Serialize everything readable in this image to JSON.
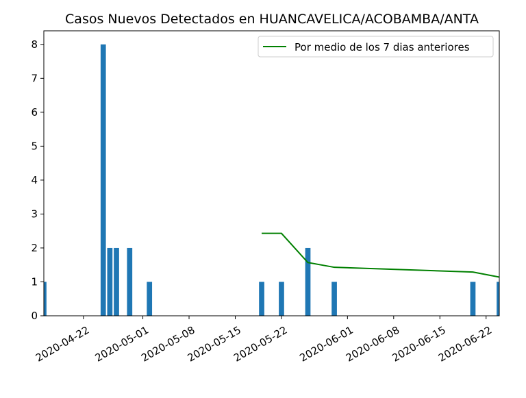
{
  "chart_data": {
    "type": "bar",
    "title": "Casos Nuevos Detectados en HUANCAVELICA/ACOBAMBA/ANTA",
    "xlabel": "",
    "ylabel": "",
    "xlim": [
      "2020-04-16",
      "2020-06-24"
    ],
    "ylim": [
      0,
      8.4
    ],
    "x_ticks": [
      "2020-04-22",
      "2020-05-01",
      "2020-05-08",
      "2020-05-15",
      "2020-05-22",
      "2020-06-01",
      "2020-06-08",
      "2020-06-15",
      "2020-06-22"
    ],
    "y_ticks": [
      0,
      1,
      2,
      3,
      4,
      5,
      6,
      7,
      8
    ],
    "grid": false,
    "legend_position": "top-right",
    "colors": {
      "bars": "#1f77b4",
      "line": "#008000"
    },
    "bars": {
      "dates": [
        "2020-04-16",
        "2020-04-25",
        "2020-04-26",
        "2020-04-27",
        "2020-04-29",
        "2020-05-02",
        "2020-05-19",
        "2020-05-22",
        "2020-05-26",
        "2020-05-30",
        "2020-06-20",
        "2020-06-24"
      ],
      "values": [
        1,
        8,
        2,
        2,
        2,
        1,
        1,
        1,
        2,
        1,
        1,
        1
      ]
    },
    "series": [
      {
        "name": "Por medio de los 7 dias anteriores",
        "type": "line",
        "x": [
          "2020-05-19",
          "2020-05-22",
          "2020-05-26",
          "2020-05-30",
          "2020-06-20",
          "2020-06-24"
        ],
        "y": [
          2.43,
          2.43,
          1.57,
          1.43,
          1.29,
          1.14
        ]
      }
    ]
  }
}
